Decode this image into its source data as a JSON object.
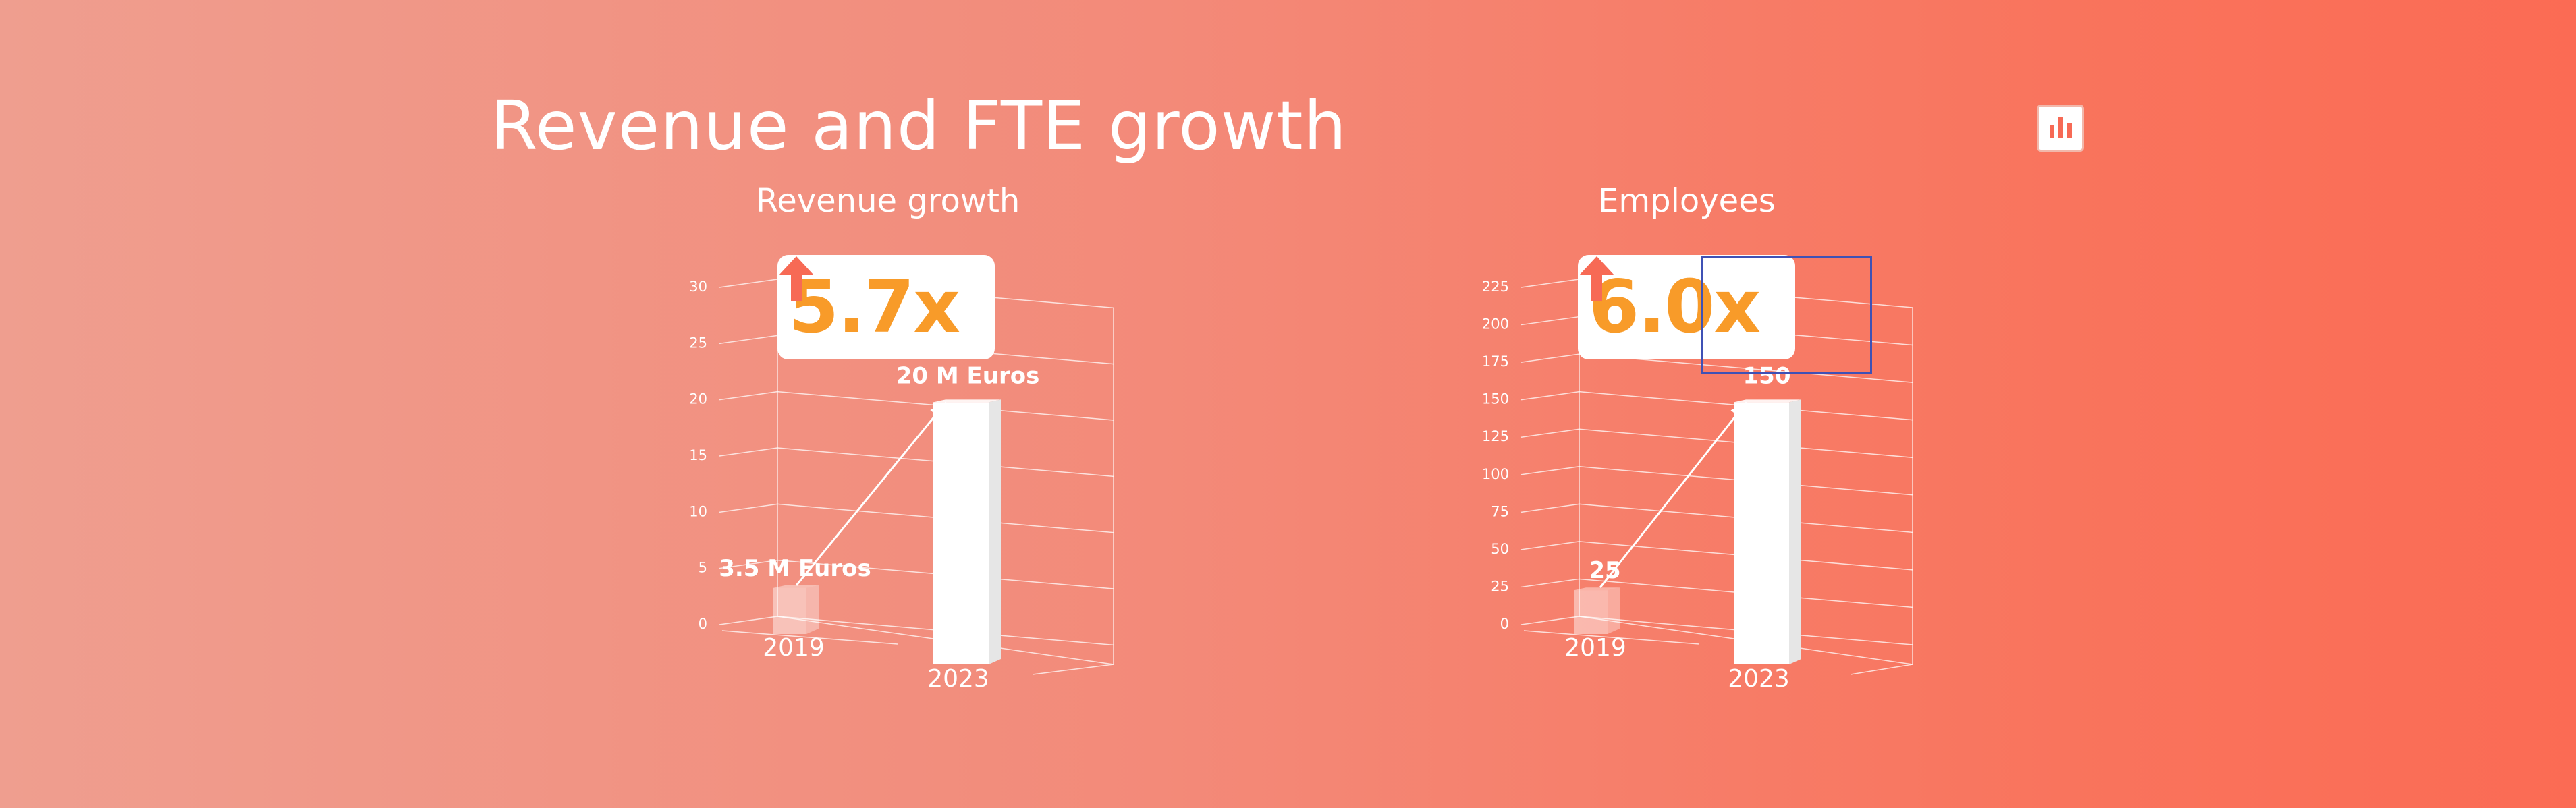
{
  "page": {
    "title": "Revenue and FTE growth",
    "toolbar_icon": "bar-chart-icon"
  },
  "colors": {
    "accent": "#f89b29",
    "arrow": "#f76a55",
    "bar": "#ffffff",
    "selection": "#3f51b5"
  },
  "charts": {
    "revenue": {
      "badge": "5.7x"
    },
    "employees": {
      "badge": "6.0x"
    }
  },
  "chart_data": [
    {
      "type": "bar",
      "title": "Revenue growth",
      "categories": [
        "2019",
        "2023"
      ],
      "values": [
        3.5,
        20
      ],
      "data_labels": [
        "3.5 M Euros",
        "20 M Euros"
      ],
      "yticks": [
        "0",
        "5",
        "10",
        "15",
        "20",
        "25",
        "30"
      ],
      "ylim": [
        0,
        30
      ],
      "xlabel": "",
      "ylabel": "",
      "grid": true,
      "annotation": "5.7x"
    },
    {
      "type": "bar",
      "title": "Employees",
      "categories": [
        "2019",
        "2023"
      ],
      "values": [
        25,
        150
      ],
      "data_labels": [
        "25",
        "150"
      ],
      "yticks": [
        "0",
        "25",
        "50",
        "75",
        "100",
        "125",
        "150",
        "175",
        "200",
        "225"
      ],
      "ylim": [
        0,
        225
      ],
      "xlabel": "",
      "ylabel": "",
      "grid": true,
      "annotation": "6.0x"
    }
  ]
}
